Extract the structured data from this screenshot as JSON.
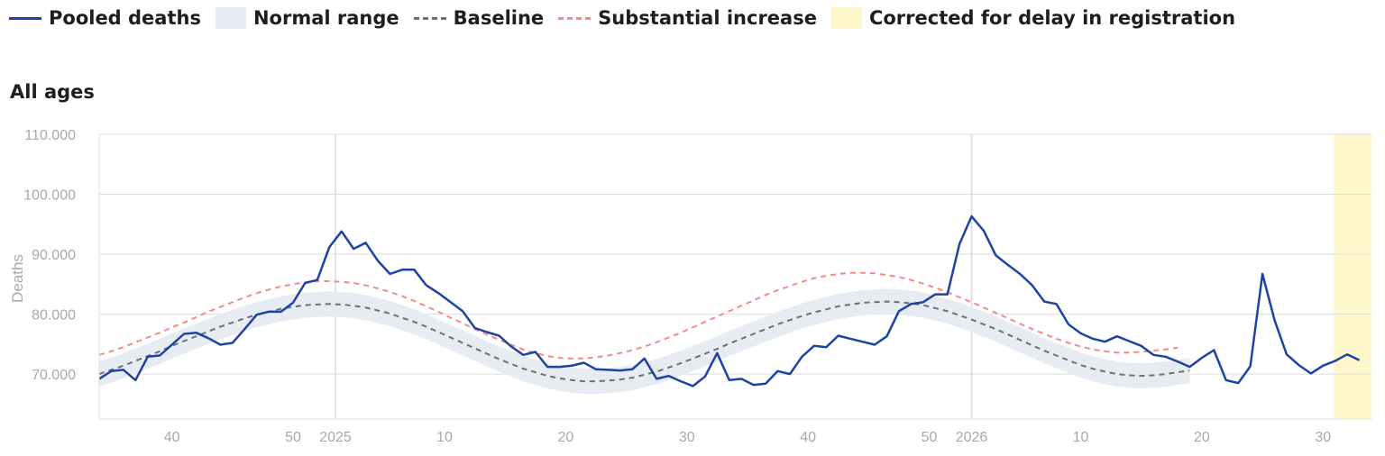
{
  "legend": {
    "pooled": "Pooled deaths",
    "normal": "Normal range",
    "baseline": "Baseline",
    "substantial": "Substantial increase",
    "corrected": "Corrected for delay in registration"
  },
  "panel_title": "All ages",
  "colors": {
    "pooled": "#1f43a5",
    "band": "#e7ecf2",
    "baseline": "#707070",
    "substantial": "#f28b87",
    "corrected": "#fff7cc",
    "grid": "#dcdcdc",
    "tick": "#a8a8a8"
  },
  "chart_data": {
    "type": "line",
    "title": "All ages",
    "xlabel": "",
    "ylabel": "Deaths",
    "ylim": [
      62500,
      110000
    ],
    "y_ticks": [
      70000,
      80000,
      90000,
      100000,
      110000
    ],
    "y_tick_labels": [
      "70.000",
      "80.000",
      "90.000",
      "100.000",
      "110.000"
    ],
    "x_unit": "ISO week (2024 week 34 to 2026 week 34)",
    "x_ticks": [
      {
        "label": "40",
        "x": 40
      },
      {
        "label": "50",
        "x": 50
      },
      {
        "label": "2025",
        "x": 53.5
      },
      {
        "label": "10",
        "x": 62.5
      },
      {
        "label": "20",
        "x": 72.5
      },
      {
        "label": "30",
        "x": 82.5
      },
      {
        "label": "40",
        "x": 92.5
      },
      {
        "label": "50",
        "x": 102.5
      },
      {
        "label": "2026",
        "x": 106
      },
      {
        "label": "10",
        "x": 115
      },
      {
        "label": "20",
        "x": 125
      },
      {
        "label": "30",
        "x": 135
      }
    ],
    "year_lines": [
      53.5,
      106
    ],
    "corrected_range": [
      135.9,
      139
    ],
    "x_start": 34,
    "series": [
      {
        "name": "Pooled deaths",
        "values": [
          69200,
          70500,
          70700,
          69000,
          72900,
          73100,
          74900,
          76700,
          76900,
          76000,
          74900,
          75200,
          77500,
          79900,
          80400,
          80400,
          81900,
          85200,
          85700,
          91200,
          93800,
          90900,
          91900,
          88900,
          86700,
          87400,
          87400,
          84800,
          83500,
          82000,
          80500,
          77700,
          77000,
          76400,
          74600,
          73200,
          73700,
          71200,
          71200,
          71400,
          71900,
          70800,
          70700,
          70600,
          70800,
          72600,
          69200,
          69700,
          68800,
          68000,
          69600,
          73500,
          69000,
          69200,
          68200,
          68400,
          70500,
          70000,
          72900,
          74700,
          74500,
          76400,
          75900,
          75400,
          74900,
          76300,
          80500,
          81700,
          82000,
          83300,
          83300,
          91700,
          96300,
          93900,
          89800,
          88200,
          86700,
          84800,
          82100,
          81700,
          78300,
          76800,
          75900,
          75400,
          76300,
          75500,
          74700,
          73200,
          72900,
          72100,
          71200,
          72700,
          74000,
          69000,
          68500,
          71300,
          86700,
          79000,
          73300,
          71500,
          70100,
          71400,
          72200,
          73300,
          72300
        ]
      },
      {
        "name": "Baseline",
        "values": [
          70000,
          70700,
          71400,
          72200,
          73000,
          73800,
          74700,
          75500,
          76300,
          77100,
          77900,
          78600,
          79300,
          79900,
          80400,
          80900,
          81200,
          81500,
          81600,
          81700,
          81600,
          81400,
          81100,
          80600,
          80100,
          79400,
          78700,
          77900,
          77000,
          76100,
          75200,
          74300,
          73400,
          72500,
          71700,
          70900,
          70300,
          69700,
          69300,
          69000,
          68800,
          68800,
          68900,
          69100,
          69400,
          69900,
          70400,
          71100,
          71800,
          72600,
          73400,
          74200,
          75100,
          75900,
          76700,
          77500,
          78300,
          79000,
          79700,
          80300,
          80800,
          81300,
          81600,
          81900,
          82000,
          82100,
          82000,
          81800,
          81500,
          81000,
          80500,
          79800,
          79100,
          78300,
          77500,
          76600,
          75700,
          74800,
          73900,
          73100,
          72300,
          71500,
          70900,
          70400,
          70000,
          69800,
          69700,
          69800,
          70000,
          70300,
          70600
        ]
      },
      {
        "name": "Substantial increase",
        "values": [
          73200,
          73800,
          74500,
          75300,
          76100,
          76900,
          77800,
          78600,
          79500,
          80400,
          81200,
          82000,
          82800,
          83500,
          84100,
          84600,
          85000,
          85300,
          85500,
          85500,
          85400,
          85200,
          84800,
          84300,
          83700,
          83000,
          82200,
          81300,
          80400,
          79400,
          78500,
          77500,
          76600,
          75700,
          74900,
          74100,
          73500,
          73000,
          72700,
          72600,
          72600,
          72800,
          73100,
          73500,
          74000,
          74600,
          75300,
          76100,
          76900,
          77800,
          78700,
          79600,
          80500,
          81400,
          82300,
          83200,
          84000,
          84700,
          85400,
          86000,
          86400,
          86700,
          86900,
          86900,
          86800,
          86500,
          86200,
          85700,
          85100,
          84400,
          83700,
          82800,
          82000,
          81100,
          80200,
          79300,
          78400,
          77500,
          76700,
          75900,
          75200,
          74600,
          74100,
          73800,
          73600,
          73600,
          73700,
          73900,
          74100,
          74400
        ]
      }
    ]
  }
}
